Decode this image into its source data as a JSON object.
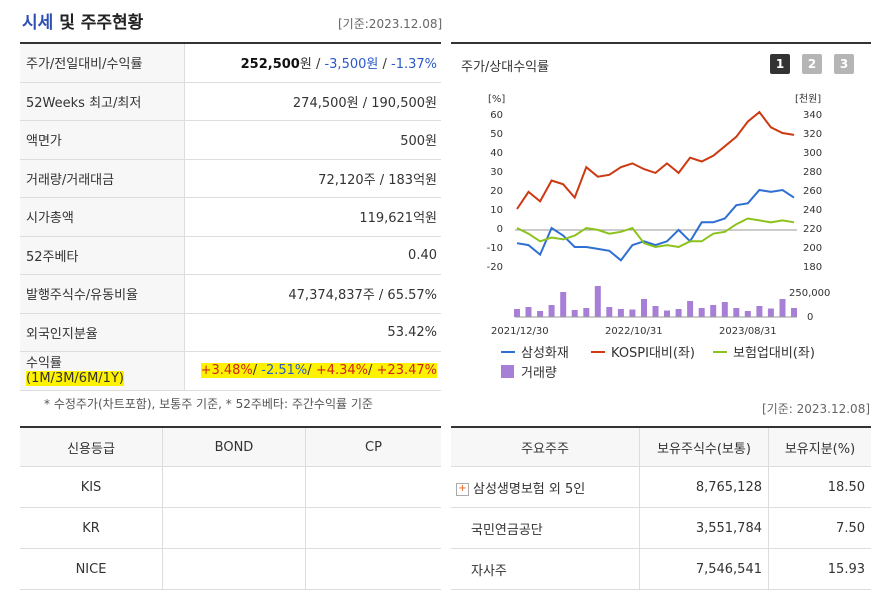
{
  "header": {
    "title_a": "시세",
    "title_b": " 및 주주현황",
    "base_date": "[기준:2023.12.08]"
  },
  "summary": {
    "rows": [
      {
        "label": "주가/전일대비/수익률",
        "price": "252,500",
        "price_unit": "원",
        "sep1": " / ",
        "change": "-3,500원",
        "sep2": " / ",
        "rate": "-1.37%"
      },
      {
        "label": "52Weeks 최고/최저",
        "value": "274,500원 / 190,500원"
      },
      {
        "label": "액면가",
        "value": "500원"
      },
      {
        "label": "거래량/거래대금",
        "value": "72,120주 / 183억원"
      },
      {
        "label": "시가총액",
        "value": "119,621억원"
      },
      {
        "label": "52주베타",
        "value": "0.40"
      },
      {
        "label": "발행주식수/유동비율",
        "value": "47,374,837주 / 65.57%"
      },
      {
        "label": "외국인지분율",
        "value": "53.42%"
      }
    ],
    "returns": {
      "label_top": "수익률",
      "label_bottom": "(1M/3M/6M/1Y)",
      "r1": "+3.48%",
      "r2": "-2.51%",
      "r3": "+4.34%",
      "r4": "+23.47%",
      "sep": "/ "
    },
    "note": "* 수정주가(차트포함), 보통주 기준, * 52주베타: 주간수익률 기준"
  },
  "chart_panel": {
    "title": "주가/상대수익률",
    "pages": [
      "1",
      "2",
      "3"
    ],
    "colors": {
      "active_page": "#333333",
      "inactive_page": "#b5b5b5",
      "samsung": "#2e6fd3",
      "kospi": "#cc3a12",
      "insurance": "#8cc21c",
      "volume": "#a77fd6"
    }
  },
  "chart_data": {
    "type": "line",
    "left_unit": "[%]",
    "right_unit": "[천원]",
    "left_ticks": [
      60,
      50,
      40,
      30,
      20,
      10,
      0,
      -10,
      -20
    ],
    "right_ticks": [
      340,
      320,
      300,
      280,
      260,
      240,
      220,
      200,
      180
    ],
    "ylim": [
      -20,
      60
    ],
    "x_labels": [
      "2021/12/30",
      "2022/10/31",
      "2023/08/31"
    ],
    "volume_ticks": [
      "250,000",
      "0"
    ],
    "series": [
      {
        "name": "삼성화재",
        "values": [
          -8,
          -9,
          -14,
          0,
          -4,
          -10,
          -10,
          -11,
          -12,
          -17,
          -9,
          -7,
          -9,
          -7,
          -1,
          -7,
          3,
          3,
          5,
          12,
          13,
          20,
          19,
          20,
          16
        ]
      },
      {
        "name": "KOSPI대비(좌)",
        "values": [
          10,
          19,
          14,
          25,
          23,
          16,
          32,
          27,
          28,
          32,
          34,
          31,
          29,
          34,
          29,
          37,
          35,
          38,
          43,
          48,
          56,
          61,
          53,
          50,
          49
        ]
      },
      {
        "name": "보험업대비(좌)",
        "values": [
          0,
          -3,
          -7,
          -5,
          -6,
          -4,
          0,
          -1,
          -3,
          -2,
          0,
          -8,
          -10,
          -9,
          -10,
          -7,
          -7,
          -3,
          -2,
          2,
          5,
          4,
          3,
          4,
          3
        ]
      }
    ],
    "volume": {
      "name": "거래량",
      "values": [
        80,
        100,
        60,
        120,
        250,
        70,
        90,
        310,
        100,
        80,
        75,
        180,
        110,
        65,
        80,
        160,
        90,
        120,
        150,
        90,
        60,
        110,
        85,
        180,
        90
      ]
    }
  },
  "credit": {
    "headers": [
      "신용등급",
      "BOND",
      "CP"
    ],
    "rows": [
      [
        "KIS",
        "",
        ""
      ],
      [
        "KR",
        "",
        ""
      ],
      [
        "NICE",
        "",
        ""
      ]
    ]
  },
  "holders": {
    "base_date": "[기준: 2023.12.08]",
    "headers": [
      "주요주주",
      "보유주식수(보통)",
      "보유지분(%)"
    ],
    "expand_icon": "+",
    "rows": [
      [
        "삼성생명보험 외 5인",
        "8,765,128",
        "18.50"
      ],
      [
        "국민연금공단",
        "3,551,784",
        "7.50"
      ],
      [
        "자사주",
        "7,546,541",
        "15.93"
      ]
    ]
  }
}
